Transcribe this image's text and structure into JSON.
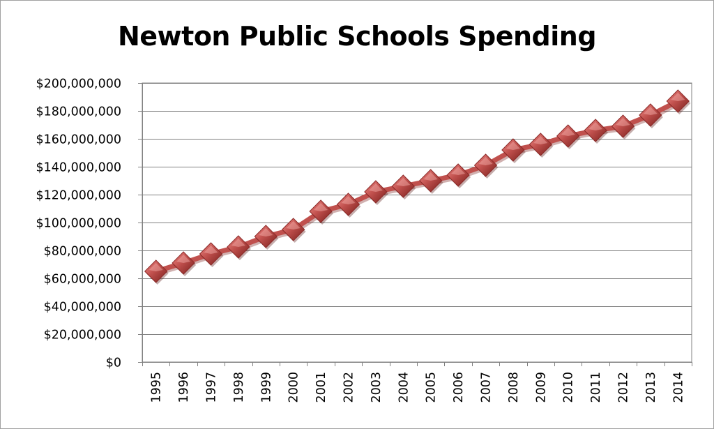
{
  "chart_data": {
    "type": "line",
    "title": "Newton Public Schools Spending",
    "xlabel": "",
    "ylabel": "",
    "ylim": [
      0,
      200000000
    ],
    "y_ticks": [
      {
        "value": 0,
        "label": "$0"
      },
      {
        "value": 20000000,
        "label": "$20,000,000"
      },
      {
        "value": 40000000,
        "label": "$40,000,000"
      },
      {
        "value": 60000000,
        "label": "$60,000,000"
      },
      {
        "value": 80000000,
        "label": "$80,000,000"
      },
      {
        "value": 100000000,
        "label": "$100,000,000"
      },
      {
        "value": 120000000,
        "label": "$120,000,000"
      },
      {
        "value": 140000000,
        "label": "$140,000,000"
      },
      {
        "value": 160000000,
        "label": "$160,000,000"
      },
      {
        "value": 180000000,
        "label": "$180,000,000"
      },
      {
        "value": 200000000,
        "label": "$200,000,000"
      }
    ],
    "categories": [
      "1995",
      "1996",
      "1997",
      "1998",
      "1999",
      "2000",
      "2001",
      "2002",
      "2003",
      "2004",
      "2005",
      "2006",
      "2007",
      "2008",
      "2009",
      "2010",
      "2011",
      "2012",
      "2013",
      "2014"
    ],
    "series": [
      {
        "values": [
          65000000,
          71000000,
          77500000,
          82500000,
          90000000,
          95000000,
          108000000,
          113000000,
          122000000,
          126000000,
          130000000,
          134000000,
          141000000,
          152000000,
          156000000,
          162000000,
          166000000,
          169000000,
          177000000,
          187000000
        ]
      }
    ],
    "grid": true,
    "legend": "none",
    "colors": {
      "line": "#c0504d",
      "marker": "#c0504d",
      "marker_dark": "#8b2a28",
      "grid": "#808080",
      "axis": "#808080"
    }
  }
}
